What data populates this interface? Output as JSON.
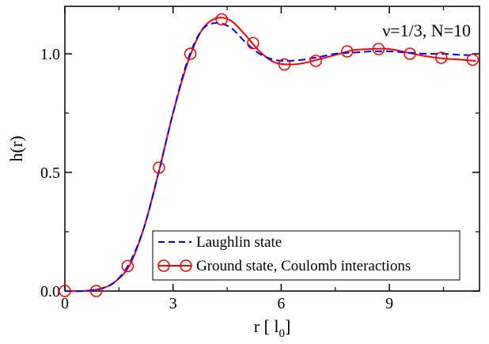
{
  "chart_data": {
    "type": "line",
    "annotation": "ν=1/3, N=10",
    "xlabel_main": "r [ l",
    "xlabel_sub": "0",
    "xlabel_end": "]",
    "ylabel": "h(r)",
    "xlim": [
      0,
      11.5
    ],
    "ylim": [
      0,
      1.2
    ],
    "xticks": [
      0,
      3,
      6,
      9
    ],
    "xtick_labels": [
      "0",
      "3",
      "6",
      "9"
    ],
    "yticks": [
      0,
      0.5,
      1.0
    ],
    "ytick_labels": [
      "0.0",
      "0.5",
      "1.0"
    ],
    "grid": false,
    "legend_position": "bottom-right",
    "series": [
      {
        "name": "Laughlin state",
        "color": "#0000ff",
        "style": "dashed",
        "marker": "none",
        "x": [
          0,
          0.5,
          1.0,
          1.4,
          1.8,
          2.2,
          2.6,
          3.0,
          3.4,
          3.8,
          4.2,
          4.6,
          5.0,
          5.4,
          5.8,
          6.2,
          6.6,
          7.0,
          7.5,
          8.0,
          8.5,
          9.0,
          9.5,
          10.0,
          10.5,
          11.0,
          11.4
        ],
        "y": [
          0.0,
          0.0,
          0.01,
          0.04,
          0.12,
          0.27,
          0.5,
          0.75,
          0.97,
          1.1,
          1.13,
          1.11,
          1.05,
          1.0,
          0.975,
          0.97,
          0.975,
          0.985,
          1.0,
          1.005,
          1.01,
          1.01,
          1.005,
          1.0,
          1.0,
          0.995,
          0.995
        ]
      },
      {
        "name": "Ground state, Coulomb interactions",
        "color": "#ff0000",
        "style": "solid",
        "marker": "circle",
        "x": [
          0,
          0.5,
          1.0,
          1.4,
          1.8,
          2.2,
          2.6,
          3.0,
          3.4,
          3.8,
          4.2,
          4.6,
          5.0,
          5.4,
          5.8,
          6.2,
          6.6,
          7.0,
          7.5,
          8.0,
          8.5,
          9.0,
          9.5,
          10.0,
          10.5,
          11.0,
          11.4
        ],
        "y": [
          0.0,
          0.0,
          0.01,
          0.04,
          0.11,
          0.27,
          0.5,
          0.75,
          0.96,
          1.1,
          1.15,
          1.14,
          1.08,
          1.01,
          0.965,
          0.955,
          0.96,
          0.975,
          0.995,
          1.015,
          1.02,
          1.02,
          1.005,
          0.99,
          0.98,
          0.975,
          0.97
        ],
        "marker_x": [
          0,
          0.87,
          1.74,
          2.61,
          3.48,
          4.35,
          5.22,
          6.09,
          6.96,
          7.83,
          8.7,
          9.57,
          10.44,
          11.31
        ],
        "marker_y": [
          0.0,
          0.0,
          0.105,
          0.52,
          1.0,
          1.145,
          1.045,
          0.955,
          0.97,
          1.01,
          1.02,
          1.0,
          0.983,
          0.975
        ]
      }
    ]
  }
}
